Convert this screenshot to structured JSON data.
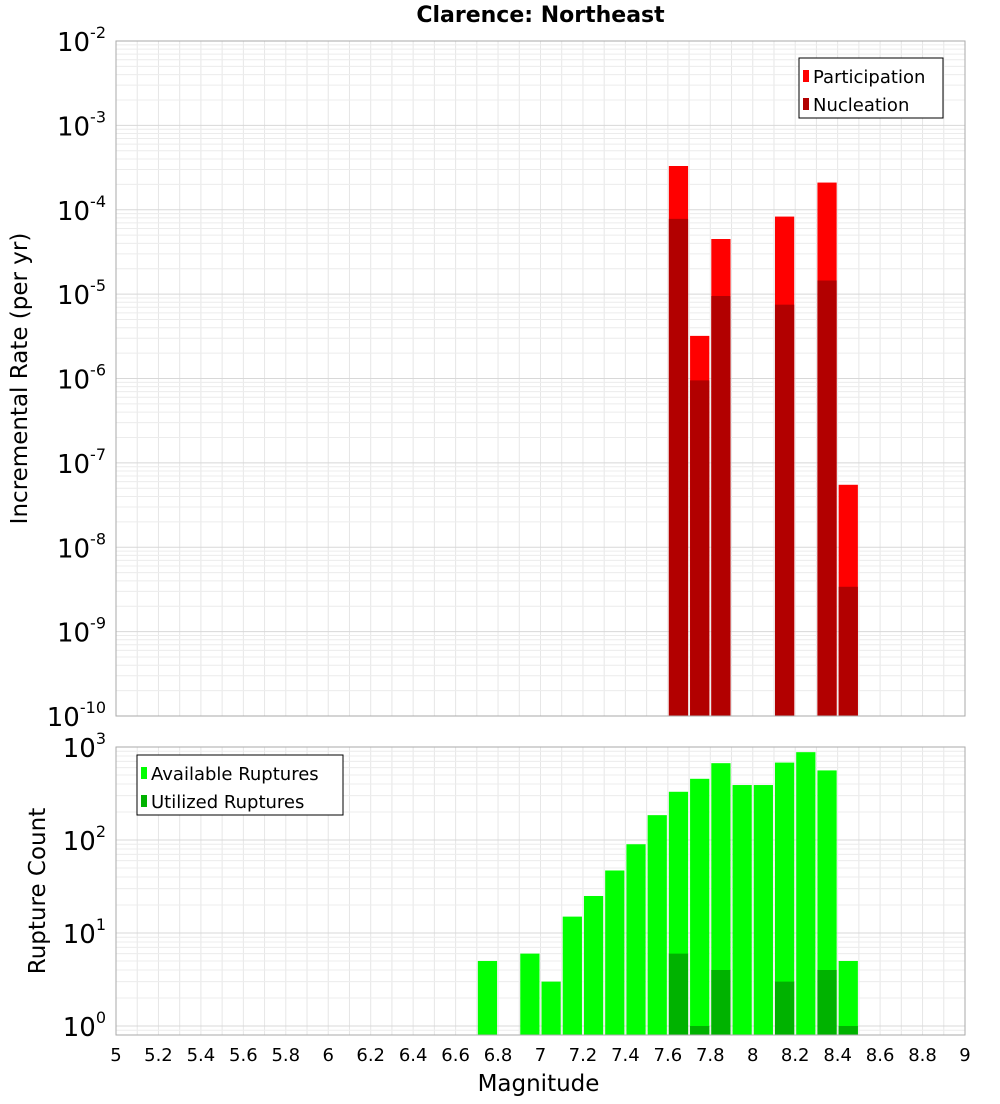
{
  "chart_data": [
    {
      "type": "bar",
      "title": "Clarence: Northeast",
      "ylabel": "Incremental Rate (per yr)",
      "xlabel": "",
      "yscale": "log",
      "ylim": [
        1e-10,
        0.01
      ],
      "xlim": [
        5,
        9
      ],
      "ytick_exponents": [
        "-10",
        "-9",
        "-8",
        "-7",
        "-6",
        "-5",
        "-4",
        "-3",
        "-2"
      ],
      "ytick_base": "10",
      "grid": true,
      "legend_position": "top-right",
      "series": [
        {
          "name": "Participation",
          "color": "#ff0000",
          "x": [
            7.65,
            7.75,
            7.85,
            8.15,
            8.35,
            8.45
          ],
          "values": [
            0.00033,
            3.2e-06,
            4.5e-05,
            8.3e-05,
            0.00021,
            5.5e-08
          ]
        },
        {
          "name": "Nucleation",
          "color": "#b20000",
          "x": [
            7.65,
            7.75,
            7.85,
            8.15,
            8.35,
            8.45
          ],
          "values": [
            7.8e-05,
            9.5e-07,
            9.5e-06,
            7.5e-06,
            1.45e-05,
            3.4e-09
          ]
        }
      ]
    },
    {
      "type": "bar",
      "title": "",
      "ylabel": "Rupture Count",
      "xlabel": "Magnitude",
      "yscale": "log",
      "ylim": [
        0.8,
        1000
      ],
      "xlim": [
        5,
        9
      ],
      "xticks": [
        "5",
        "5.2",
        "5.4",
        "5.6",
        "5.8",
        "6",
        "6.2",
        "6.4",
        "6.6",
        "6.8",
        "7",
        "7.2",
        "7.4",
        "7.6",
        "7.8",
        "8",
        "8.2",
        "8.4",
        "8.6",
        "8.8",
        "9"
      ],
      "ytick_exponents": [
        "0",
        "1",
        "2",
        "3"
      ],
      "ytick_base": "10",
      "grid": true,
      "legend_position": "top-left",
      "series": [
        {
          "name": "Available Ruptures",
          "color": "#00ff00",
          "x": [
            6.75,
            6.95,
            7.05,
            7.15,
            7.25,
            7.35,
            7.45,
            7.55,
            7.65,
            7.75,
            7.85,
            7.95,
            8.05,
            8.15,
            8.25,
            8.35,
            8.45
          ],
          "values": [
            5,
            6,
            3,
            15,
            25,
            47,
            90,
            185,
            330,
            455,
            670,
            390,
            390,
            680,
            880,
            560,
            5
          ]
        },
        {
          "name": "Utilized Ruptures",
          "color": "#00b200",
          "x": [
            7.65,
            7.75,
            7.85,
            8.15,
            8.35,
            8.45
          ],
          "values": [
            6,
            1,
            4,
            3,
            4,
            1
          ]
        }
      ]
    }
  ]
}
